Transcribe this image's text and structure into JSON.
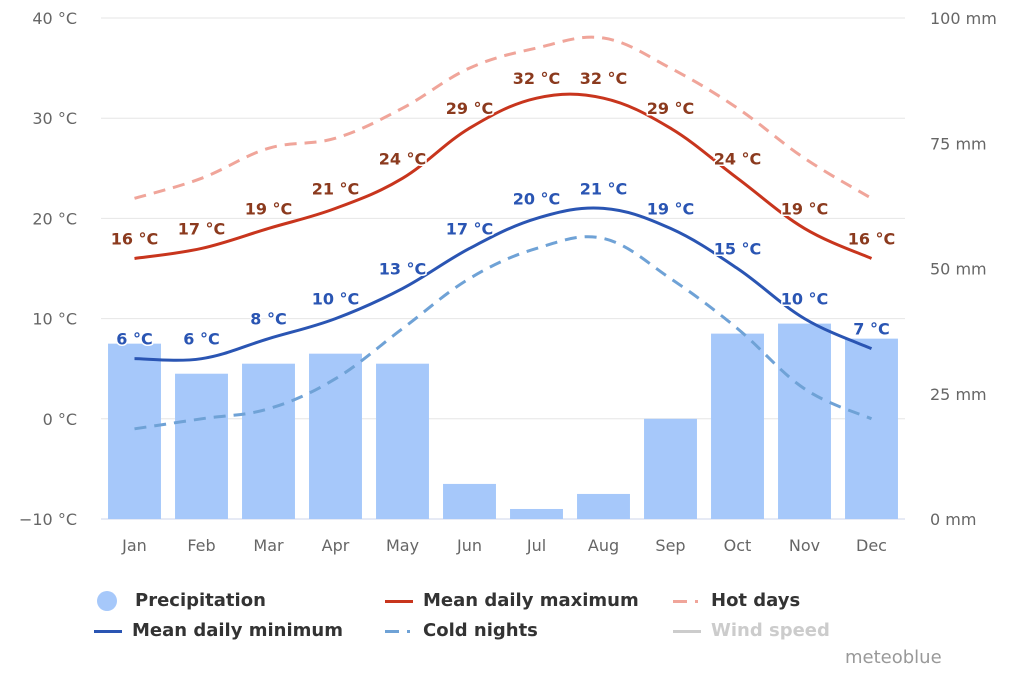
{
  "chart_data": {
    "type": "bar+line",
    "title": "",
    "categories": [
      "Jan",
      "Feb",
      "Mar",
      "Apr",
      "May",
      "Jun",
      "Jul",
      "Aug",
      "Sep",
      "Oct",
      "Nov",
      "Dec"
    ],
    "y_left": {
      "label": "",
      "unit": "°C",
      "range": [
        -10,
        40
      ],
      "ticks": [
        -10,
        0,
        10,
        20,
        30,
        40
      ],
      "tick_labels": [
        "−10 °C",
        "0 °C",
        "10 °C",
        "20 °C",
        "30 °C",
        "40 °C"
      ]
    },
    "y_right": {
      "label": "",
      "unit": "mm",
      "range": [
        0,
        100
      ],
      "ticks": [
        0,
        25,
        50,
        75,
        100
      ],
      "tick_labels": [
        "0 mm",
        "25 mm",
        "50 mm",
        "75 mm",
        "100 mm"
      ]
    },
    "grid": true,
    "legend_position": "bottom",
    "series": [
      {
        "name": "Precipitation",
        "type": "bar",
        "axis": "right",
        "color": "#a6c8fa",
        "values": [
          35,
          29,
          31,
          33,
          31,
          7,
          2,
          5,
          20,
          37,
          39,
          36
        ]
      },
      {
        "name": "Mean daily maximum",
        "type": "line",
        "axis": "left",
        "color": "#c8351d",
        "label_color": "#8b3a1e",
        "values": [
          16,
          17,
          19,
          21,
          24,
          29,
          32,
          32,
          29,
          24,
          19,
          16
        ],
        "labels": [
          "16 °C",
          "17 °C",
          "19 °C",
          "21 °C",
          "24 °C",
          "29 °C",
          "32 °C",
          "32 °C",
          "29 °C",
          "24 °C",
          "19 °C",
          "16 °C"
        ]
      },
      {
        "name": "Hot days",
        "type": "dashed-line",
        "axis": "left",
        "color": "#f0a59a",
        "values": [
          22,
          24,
          27,
          28,
          31,
          35,
          37,
          38,
          35,
          31,
          26,
          22
        ]
      },
      {
        "name": "Mean daily minimum",
        "type": "line",
        "axis": "left",
        "color": "#2a55b3",
        "label_color": "#2a55b3",
        "values": [
          6,
          6,
          8,
          10,
          13,
          17,
          20,
          21,
          19,
          15,
          10,
          7
        ],
        "labels": [
          "6 °C",
          "6 °C",
          "8 °C",
          "10 °C",
          "13 °C",
          "17 °C",
          "20 °C",
          "21 °C",
          "19 °C",
          "15 °C",
          "10 °C",
          "7 °C"
        ]
      },
      {
        "name": "Cold nights",
        "type": "dashed-line",
        "axis": "left",
        "color": "#6fa2d6",
        "values": [
          -1,
          0,
          1,
          4,
          9,
          14,
          17,
          18,
          14,
          9,
          3,
          0
        ]
      },
      {
        "name": "Wind speed",
        "type": "line",
        "axis": "left",
        "color": "#cccccc",
        "hidden": true,
        "values": []
      }
    ]
  },
  "legend": [
    {
      "label": "Precipitation",
      "symbol": "circle",
      "color": "#a6c8fa",
      "enabled": true
    },
    {
      "label": "Mean daily maximum",
      "symbol": "line",
      "color": "#c8351d",
      "enabled": true
    },
    {
      "label": "Hot days",
      "symbol": "dash",
      "color": "#f0a59a",
      "enabled": true
    },
    {
      "label": "Mean daily minimum",
      "symbol": "line",
      "color": "#2a55b3",
      "enabled": true
    },
    {
      "label": "Cold nights",
      "symbol": "dash",
      "color": "#6fa2d6",
      "enabled": true
    },
    {
      "label": "Wind speed",
      "symbol": "line",
      "color": "#cccccc",
      "enabled": false
    }
  ],
  "credit": "meteoblue"
}
